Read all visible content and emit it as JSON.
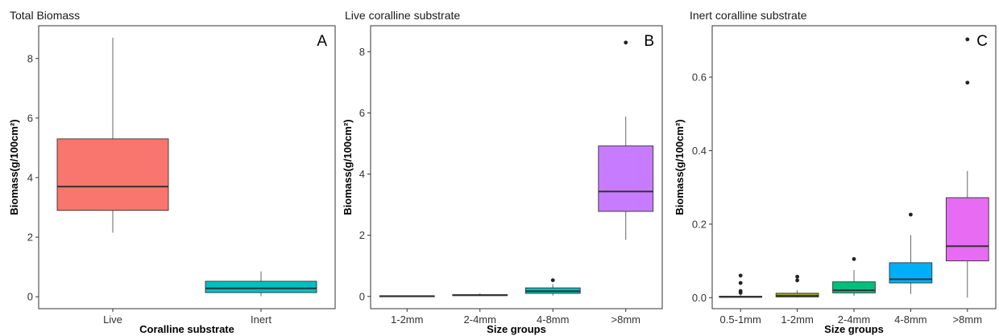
{
  "chart_data": [
    {
      "type": "box",
      "title": "Total Biomass",
      "panel_label": "A",
      "xlabel": "Coralline substrate",
      "ylabel": "Biomass(g/100cm²)",
      "ylim": [
        -0.4,
        9.1
      ],
      "yticks": [
        0,
        2,
        4,
        6,
        8
      ],
      "grid": false,
      "categories": [
        "Live",
        "Inert"
      ],
      "colors": [
        "#f8766d",
        "#00bfc4"
      ],
      "boxes": [
        {
          "category": "Live",
          "min": 2.15,
          "q1": 2.9,
          "median": 3.7,
          "q3": 5.3,
          "max": 8.7,
          "outliers": []
        },
        {
          "category": "Inert",
          "min": 0.02,
          "q1": 0.14,
          "median": 0.28,
          "q3": 0.52,
          "max": 0.85,
          "outliers": []
        }
      ]
    },
    {
      "type": "box",
      "title": "Live coralline substrate",
      "panel_label": "B",
      "xlabel": "Size groups",
      "ylabel": "Biomass(g/100cm²)",
      "ylim": [
        -0.4,
        8.85
      ],
      "yticks": [
        0,
        2,
        4,
        6,
        8
      ],
      "grid": false,
      "categories": [
        "1-2mm",
        "2-4mm",
        "4-8mm",
        ">8mm"
      ],
      "colors": [
        "#f8766d",
        "#7cae00",
        "#00bfc4",
        "#c77cff"
      ],
      "boxes": [
        {
          "category": "1-2mm",
          "min": 0.0,
          "q1": 0.005,
          "median": 0.01,
          "q3": 0.02,
          "max": 0.03,
          "outliers": []
        },
        {
          "category": "2-4mm",
          "min": 0.01,
          "q1": 0.03,
          "median": 0.04,
          "q3": 0.06,
          "max": 0.1,
          "outliers": []
        },
        {
          "category": "4-8mm",
          "min": 0.03,
          "q1": 0.1,
          "median": 0.17,
          "q3": 0.28,
          "max": 0.4,
          "outliers": [
            0.53
          ]
        },
        {
          "category": ">8mm",
          "min": 1.85,
          "q1": 2.78,
          "median": 3.43,
          "q3": 4.92,
          "max": 5.88,
          "outliers": [
            8.3
          ]
        }
      ]
    },
    {
      "type": "box",
      "title": "Inert coralline substrate",
      "panel_label": "C",
      "xlabel": "Size groups",
      "ylabel": "Biomass(g/100cm²)",
      "ylim": [
        -0.03,
        0.74
      ],
      "yticks": [
        "0.0",
        "0.2",
        "0.4",
        "0.6"
      ],
      "grid": false,
      "categories": [
        "0.5-1mm",
        "1-2mm",
        "2-4mm",
        "4-8mm",
        ">8mm"
      ],
      "colors": [
        "#f8766d",
        "#a3a500",
        "#00bf7d",
        "#00b0f6",
        "#e76bf3"
      ],
      "boxes": [
        {
          "category": "0.5-1mm",
          "min": 0.0,
          "q1": 0.001,
          "median": 0.002,
          "q3": 0.004,
          "max": 0.007,
          "outliers": [
            0.013,
            0.018,
            0.04,
            0.06
          ]
        },
        {
          "category": "1-2mm",
          "min": 0.0,
          "q1": 0.002,
          "median": 0.005,
          "q3": 0.012,
          "max": 0.02,
          "outliers": [
            0.047,
            0.057
          ]
        },
        {
          "category": "2-4mm",
          "min": 0.005,
          "q1": 0.013,
          "median": 0.02,
          "q3": 0.043,
          "max": 0.075,
          "outliers": [
            0.105
          ]
        },
        {
          "category": "4-8mm",
          "min": 0.01,
          "q1": 0.04,
          "median": 0.05,
          "q3": 0.095,
          "max": 0.17,
          "outliers": [
            0.226
          ]
        },
        {
          "category": ">8mm",
          "min": 0.0,
          "q1": 0.1,
          "median": 0.14,
          "q3": 0.272,
          "max": 0.345,
          "outliers": [
            0.585,
            0.703
          ]
        }
      ]
    }
  ]
}
